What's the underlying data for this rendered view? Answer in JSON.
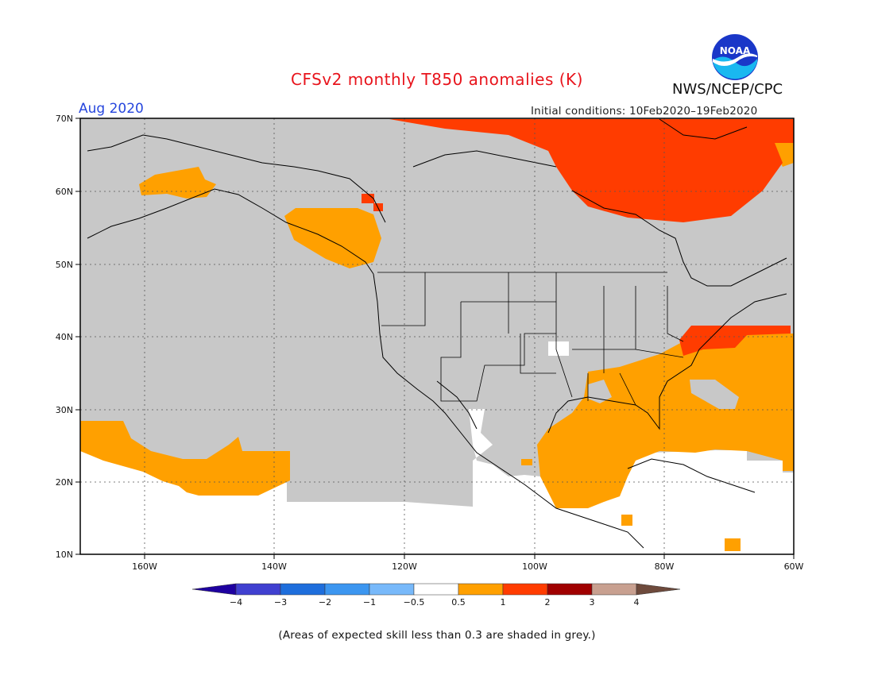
{
  "header": {
    "title": "CFSv2 monthly T850 anomalies (K)",
    "agency": "NWS/NCEP/CPC",
    "logo_text": "NOAA",
    "month": "Aug 2020",
    "initial_conditions": "Initial conditions: 10Feb2020–19Feb2020"
  },
  "map": {
    "region": "North America",
    "lon_range": [
      -172,
      -60
    ],
    "lat_range": [
      10,
      70
    ],
    "lon_ticks": [
      "160W",
      "140W",
      "120W",
      "100W",
      "80W",
      "60W"
    ],
    "lat_ticks": [
      "10N",
      "20N",
      "30N",
      "40N",
      "50N",
      "60N",
      "70N"
    ],
    "grey_meaning": "skill < 0.3",
    "colors": {
      "grey": "#c8c8c8",
      "light_anom": "#ffa000",
      "strong_anom": "#ff3c00",
      "land_outline": "#000000"
    }
  },
  "colorbar": {
    "labels": [
      "−4",
      "−3",
      "−2",
      "−1",
      "−0.5",
      "0.5",
      "1",
      "2",
      "3",
      "4"
    ],
    "colors": [
      "#1e00a0",
      "#4040d0",
      "#1e6edc",
      "#3c96f0",
      "#78b9fa",
      "#ffffff",
      "#ffa000",
      "#ff3c00",
      "#a00000",
      "#c8a090",
      "#6e4a3c"
    ]
  },
  "footer": {
    "note": "(Areas of expected skill less than 0.3 are shaded in grey.)"
  }
}
